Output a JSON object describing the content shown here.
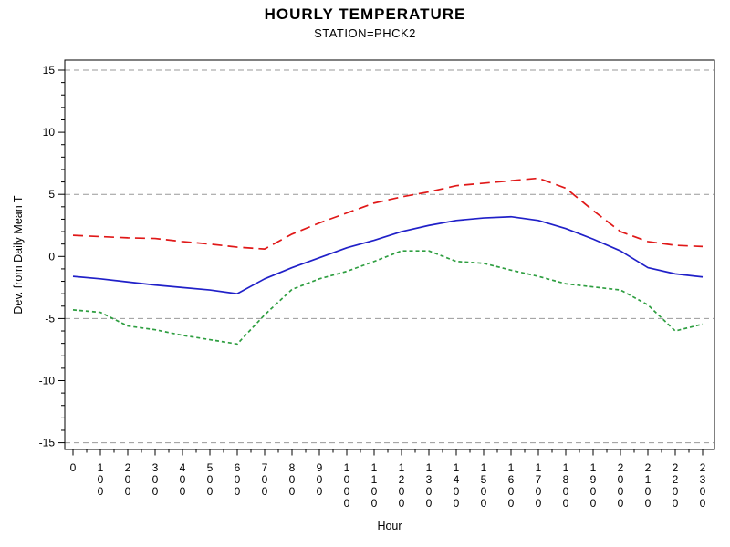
{
  "page": {
    "background": "#ffffff"
  },
  "chart_data": {
    "type": "line",
    "title": "HOURLY TEMPERATURE",
    "subtitle": "STATION=PHCK2",
    "xlabel": "Hour",
    "ylabel": "Dev. from Daily Mean T",
    "x": [
      0,
      1,
      2,
      3,
      4,
      5,
      6,
      7,
      8,
      9,
      10,
      11,
      12,
      13,
      14,
      15,
      16,
      17,
      18,
      19,
      20,
      21,
      22,
      23
    ],
    "x_tick_labels": [
      "0",
      "100",
      "200",
      "300",
      "400",
      "500",
      "600",
      "700",
      "800",
      "900",
      "1000",
      "1100",
      "1200",
      "1300",
      "1400",
      "1500",
      "1600",
      "1700",
      "1800",
      "1900",
      "2000",
      "2100",
      "2200",
      "2300"
    ],
    "y_major_ticks": [
      15,
      10,
      5,
      0,
      -5,
      -10,
      -15
    ],
    "y_minor_tick_step": 1,
    "grid_values": [
      15,
      5,
      -5,
      -15
    ],
    "ylim": [
      -15,
      15
    ],
    "grid_on": true,
    "legend": "none",
    "grid_color": "#999999",
    "axis_color": "#000000",
    "series": [
      {
        "name": "red-dashed-upper",
        "style": "dashed",
        "color": "#e01818",
        "values": [
          1.7,
          1.6,
          1.5,
          1.45,
          1.2,
          1.0,
          0.75,
          0.6,
          1.8,
          2.7,
          3.5,
          4.3,
          4.8,
          5.2,
          5.7,
          5.9,
          6.1,
          6.3,
          5.5,
          3.7,
          2.0,
          1.2,
          0.9,
          0.8
        ]
      },
      {
        "name": "blue-solid-middle",
        "style": "solid",
        "color": "#2020c8",
        "values": [
          -1.6,
          -1.8,
          -2.05,
          -2.3,
          -2.5,
          -2.7,
          -3.0,
          -1.8,
          -0.9,
          -0.1,
          0.7,
          1.3,
          2.0,
          2.5,
          2.9,
          3.1,
          3.2,
          2.9,
          2.25,
          1.4,
          0.45,
          -0.9,
          -1.4,
          -1.65
        ]
      },
      {
        "name": "green-short-dashed-lower",
        "style": "short-dashed",
        "color": "#2e9e40",
        "values": [
          -4.3,
          -4.5,
          -5.6,
          -5.9,
          -6.35,
          -6.7,
          -7.05,
          -4.7,
          -2.65,
          -1.8,
          -1.2,
          -0.4,
          0.45,
          0.45,
          -0.4,
          -0.55,
          -1.1,
          -1.6,
          -2.2,
          -2.45,
          -2.7,
          -3.9,
          -6.0,
          -5.45
        ]
      }
    ]
  }
}
